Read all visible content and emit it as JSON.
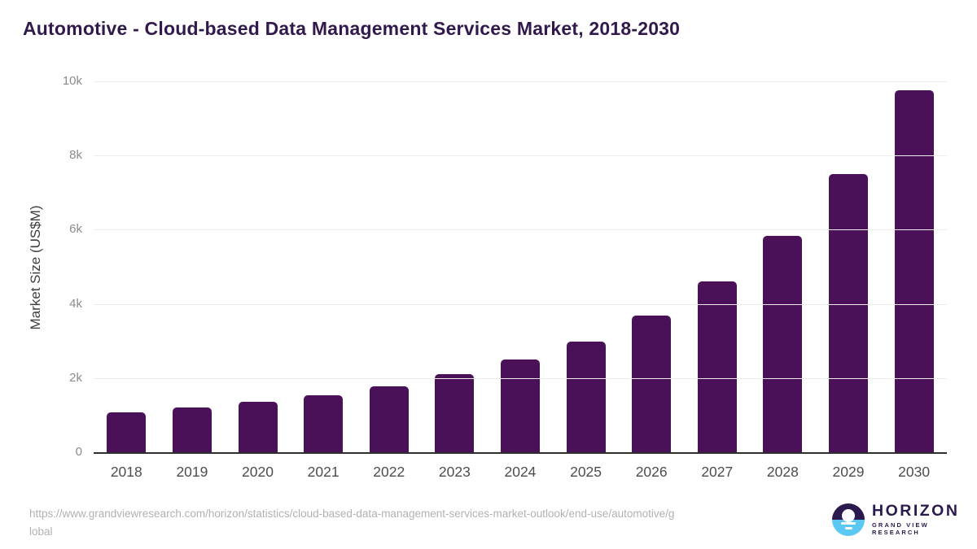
{
  "title": "Automotive - Cloud-based Data Management Services Market, 2018-2030",
  "chart_data": {
    "type": "bar",
    "title": "Automotive - Cloud-based Data Management Services Market, 2018-2030",
    "categories": [
      "2018",
      "2019",
      "2020",
      "2021",
      "2022",
      "2023",
      "2024",
      "2025",
      "2026",
      "2027",
      "2028",
      "2029",
      "2030"
    ],
    "values": [
      1070,
      1210,
      1360,
      1540,
      1780,
      2100,
      2500,
      2990,
      3690,
      4610,
      5840,
      7490,
      9750
    ],
    "xlabel": "",
    "ylabel": "Market Size (US$M)",
    "ylim": [
      0,
      10000
    ],
    "y_ticks": [
      {
        "v": 0,
        "label": "0"
      },
      {
        "v": 2000,
        "label": "2k"
      },
      {
        "v": 4000,
        "label": "4k"
      },
      {
        "v": 6000,
        "label": "6k"
      },
      {
        "v": 8000,
        "label": "8k"
      },
      {
        "v": 10000,
        "label": "10k"
      }
    ],
    "grid": true,
    "legend": false,
    "bar_color": "#4a1158"
  },
  "footer": {
    "source": {
      "lines": [
        "https://www.grandviewresearch.com/horizon/statistics/cloud-based-data-management-services-market-outlook/end-use/automotive/g",
        "lobal"
      ]
    },
    "logo": {
      "brand": "HORIZON",
      "sub_brand": "GRAND VIEW RESEARCH"
    }
  },
  "colors": {
    "bar": "#4a1158",
    "title_text": "#311a4b",
    "logo_purple": "#2b1a4e",
    "logo_blue": "#5ac8f2"
  }
}
